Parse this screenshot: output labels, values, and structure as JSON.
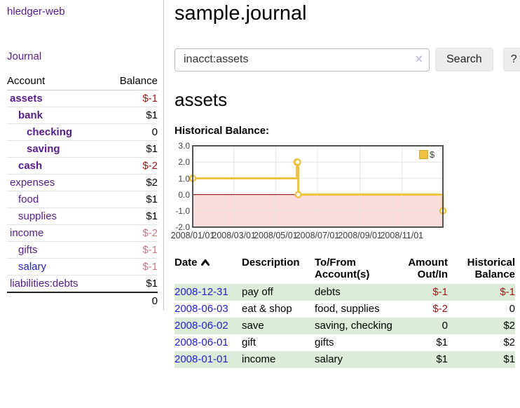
{
  "app": {
    "title": "hledger-web"
  },
  "nav": {
    "journal_label": "Journal"
  },
  "sidebar": {
    "accounts_header": {
      "account": "Account",
      "balance": "Balance"
    },
    "accounts": [
      {
        "name": "assets",
        "balance": "$-1",
        "indent": 0,
        "bold": true,
        "name_style": "purple",
        "balance_style": "neg-strong"
      },
      {
        "name": "bank",
        "balance": "$1",
        "indent": 1,
        "bold": true,
        "name_style": "purple",
        "balance_style": "normal"
      },
      {
        "name": "checking",
        "balance": "0",
        "indent": 2,
        "bold": true,
        "name_style": "purple",
        "balance_style": "normal"
      },
      {
        "name": "saving",
        "balance": "$1",
        "indent": 2,
        "bold": true,
        "name_style": "purple",
        "balance_style": "normal"
      },
      {
        "name": "cash",
        "balance": "$-2",
        "indent": 1,
        "bold": true,
        "name_style": "purple",
        "balance_style": "neg-strong"
      },
      {
        "name": "expenses",
        "balance": "$2",
        "indent": 0,
        "bold": false,
        "name_style": "purple",
        "balance_style": "normal"
      },
      {
        "name": "food",
        "balance": "$1",
        "indent": 1,
        "bold": false,
        "name_style": "purple",
        "balance_style": "normal"
      },
      {
        "name": "supplies",
        "balance": "$1",
        "indent": 1,
        "bold": false,
        "name_style": "purple",
        "balance_style": "normal"
      },
      {
        "name": "income",
        "balance": "$-2",
        "indent": 0,
        "bold": false,
        "name_style": "purple",
        "balance_style": "neg-muted"
      },
      {
        "name": "gifts",
        "balance": "$-1",
        "indent": 1,
        "bold": false,
        "name_style": "purple",
        "balance_style": "neg-muted"
      },
      {
        "name": "salary",
        "balance": "$-1",
        "indent": 1,
        "bold": false,
        "name_style": "blue",
        "balance_style": "neg-muted"
      },
      {
        "name": "liabilities:debts",
        "balance": "$1",
        "indent": 0,
        "bold": false,
        "name_style": "purple",
        "balance_style": "normal"
      }
    ],
    "total": "0"
  },
  "header": {
    "title": "sample.journal"
  },
  "search": {
    "value": "inacct:assets",
    "clear_icon": "×",
    "search_label": "Search",
    "help_label": "?"
  },
  "account_page": {
    "title": "assets",
    "chart_label": "Historical Balance:"
  },
  "chart_data": {
    "type": "line",
    "title": "Historical Balance:",
    "step": true,
    "series": [
      {
        "name": "$",
        "color": "#edc240",
        "points": [
          [
            "2008-01-01",
            1
          ],
          [
            "2008-06-01",
            2
          ],
          [
            "2008-06-02",
            2
          ],
          [
            "2008-06-03",
            0
          ],
          [
            "2008-12-31",
            -1
          ]
        ]
      }
    ],
    "xlim": [
      "2008-01-01",
      "2008-12-31"
    ],
    "ylim": [
      -2,
      3
    ],
    "x_ticks": [
      "2008/01/01",
      "2008/03/01",
      "2008/05/01",
      "2008/07/01",
      "2008/09/01",
      "2008/11/01"
    ],
    "y_ticks": [
      3.0,
      2.0,
      1.0,
      0.0,
      -1.0,
      -2.0
    ],
    "grid": true,
    "negative_fill": "#fbdcdc",
    "zero_line_color": "#8b0000",
    "plot_border_color": "#545454",
    "legend_position": "top-right"
  },
  "register": {
    "headers": {
      "date": "Date",
      "description": "Description",
      "accounts": "To/From\nAccount(s)",
      "amount": "Amount\nOut/In",
      "balance": "Historical\nBalance"
    },
    "rows": [
      {
        "date": "2008-12-31",
        "description": "pay off",
        "accounts": "debts",
        "amount": "$-1",
        "amount_style": "neg-strong",
        "balance": "$-1",
        "balance_style": "neg-strong"
      },
      {
        "date": "2008-06-03",
        "description": "eat & shop",
        "accounts": "food, supplies",
        "amount": "$-2",
        "amount_style": "neg-strong",
        "balance": "0",
        "balance_style": "normal"
      },
      {
        "date": "2008-06-02",
        "description": "save",
        "accounts": "saving, checking",
        "amount": "0",
        "amount_style": "normal",
        "balance": "$2",
        "balance_style": "normal"
      },
      {
        "date": "2008-06-01",
        "description": "gift",
        "accounts": "gifts",
        "amount": "$1",
        "amount_style": "normal",
        "balance": "$2",
        "balance_style": "normal"
      },
      {
        "date": "2008-01-01",
        "description": "income",
        "accounts": "salary",
        "amount": "$1",
        "amount_style": "normal",
        "balance": "$1",
        "balance_style": "normal"
      }
    ]
  }
}
